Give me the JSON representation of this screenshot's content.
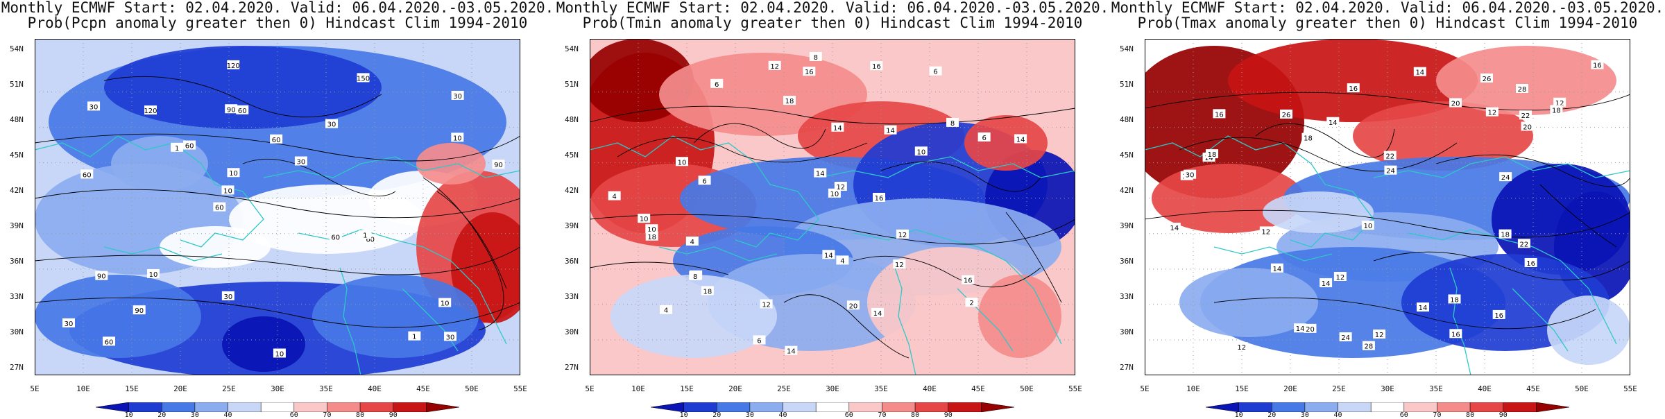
{
  "panels": [
    {
      "title_line1": "Monthly ECMWF Start: 02.04.2020. Valid: 06.04.2020.-03.05.2020.",
      "title_line2": "Prob(Pcpn anomaly greater then 0) Hindcast Clim 1994-2010",
      "contour_labels": [
        "30",
        "60",
        "30",
        "60",
        "30",
        "60",
        "90",
        "60",
        "90",
        "60",
        "30",
        "90",
        "60",
        "30",
        "60",
        "30",
        "120",
        "90",
        "60",
        "10",
        "10",
        "30",
        "10",
        "120",
        "150",
        "10",
        "1",
        "10",
        "1",
        "10",
        "1"
      ]
    },
    {
      "title_line1": "Monthly ECMWF Start: 02.04.2020. Valid: 06.04.2020.-03.05.2020.",
      "title_line2": "Prob(Tmin anomaly greater then 0) Hindcast Clim 1994-2010",
      "contour_labels": [
        "4",
        "6",
        "6",
        "8",
        "4",
        "6",
        "4",
        "6",
        "6",
        "10",
        "10",
        "8",
        "12",
        "10",
        "14",
        "12",
        "2",
        "4",
        "8",
        "6",
        "14",
        "16",
        "18",
        "12",
        "14",
        "12",
        "10",
        "16",
        "14",
        "12",
        "10",
        "18",
        "20",
        "14",
        "16",
        "18",
        "14",
        "16",
        "14"
      ]
    },
    {
      "title_line1": "Monthly ECMWF Start: 02.04.2020. Valid: 06.04.2020.-03.05.2020.",
      "title_line2": "Prob(Tmax anomaly greater then 0) Hindcast Clim 1994-2010",
      "contour_labels": [
        "14",
        "12",
        "14",
        "12",
        "16",
        "14",
        "16",
        "12",
        "14",
        "14",
        "16",
        "12",
        "18",
        "10",
        "18",
        "16",
        "12",
        "14",
        "16",
        "18",
        "20",
        "22",
        "24",
        "16",
        "14",
        "12",
        "14",
        "18",
        "20",
        "22",
        "24",
        "26",
        "28",
        "24",
        "20",
        "18",
        "22",
        "28",
        "26",
        "24",
        "30"
      ]
    }
  ],
  "x_ticks": [
    "5E",
    "10E",
    "15E",
    "20E",
    "25E",
    "30E",
    "35E",
    "40E",
    "45E",
    "50E",
    "55E"
  ],
  "y_ticks": [
    "54N",
    "51N",
    "48N",
    "45N",
    "42N",
    "39N",
    "36N",
    "33N",
    "30N",
    "27N"
  ],
  "colorbar": {
    "labels": [
      "10",
      "20",
      "30",
      "40",
      "60",
      "70",
      "80",
      "90"
    ],
    "colors": [
      "#0a14b4",
      "#1e3cd2",
      "#4678e6",
      "#8cacf0",
      "#c8d7f8",
      "#ffffff",
      "#fac8c8",
      "#f58c8c",
      "#e64646",
      "#c81414",
      "#960000"
    ]
  },
  "colors": {
    "coast": "#2ec8c8",
    "contour": "#000000",
    "grid": "#999999"
  }
}
